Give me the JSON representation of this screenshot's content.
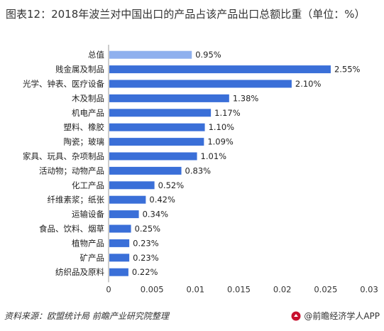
{
  "title": "图表12：2018年波兰对中国出口的产品占该产品出口总额比重（单位：%）",
  "chart_data": {
    "type": "bar",
    "orientation": "horizontal",
    "categories": [
      "总值",
      "贱金属及制品",
      "光学、钟表、医疗设备",
      "木及制品",
      "机电产品",
      "塑料、橡胶",
      "陶瓷；玻璃",
      "家具、玩具、杂项制品",
      "活动物；动物产品",
      "化工产品",
      "纤维素浆；纸张",
      "运输设备",
      "食品、饮料、烟草",
      "植物产品",
      "矿产品",
      "纺织品及原料"
    ],
    "values": [
      0.0095,
      0.0255,
      0.021,
      0.0138,
      0.0117,
      0.011,
      0.0109,
      0.0101,
      0.0083,
      0.0052,
      0.0042,
      0.0034,
      0.0025,
      0.0023,
      0.0023,
      0.0022
    ],
    "data_labels": [
      "0.95%",
      "2.55%",
      "2.10%",
      "1.38%",
      "1.17%",
      "1.10%",
      "1.09%",
      "1.01%",
      "0.83%",
      "0.52%",
      "0.42%",
      "0.34%",
      "0.25%",
      "0.23%",
      "0.23%",
      "0.22%"
    ],
    "xlim": [
      0,
      0.03
    ],
    "x_ticks": [
      "0",
      "0.005",
      "0.01",
      "0.015",
      "0.02",
      "0.025",
      "0.03"
    ],
    "highlight_index": 0,
    "colors": {
      "bar": "#3a6fd8",
      "highlight": "#8fb0ee",
      "axis": "#999999"
    },
    "grid": false
  },
  "footer": {
    "source": "资料来源：欧盟统计局 前瞻产业研究院整理",
    "brand": "@前瞻经济学人APP"
  }
}
